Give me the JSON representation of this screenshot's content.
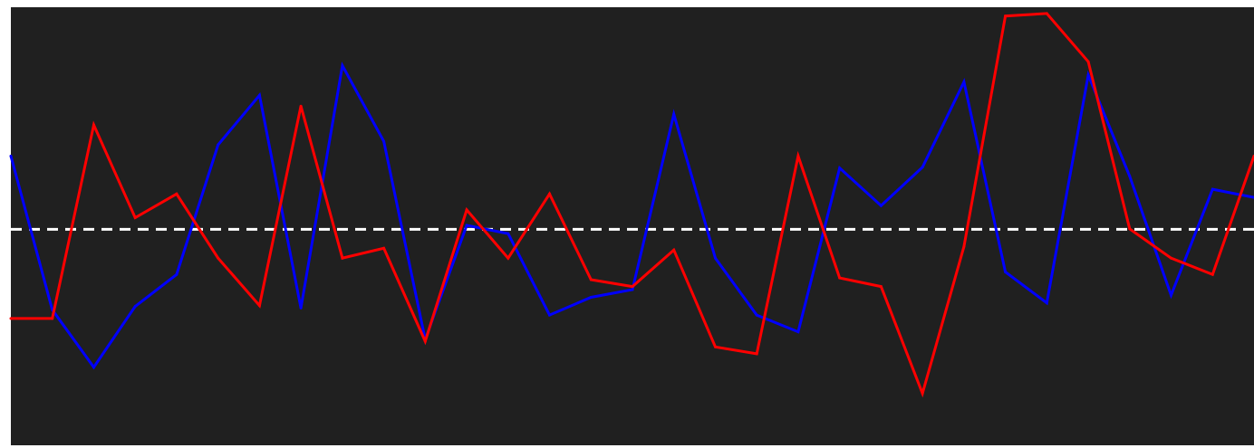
{
  "chart_data": {
    "type": "line",
    "title": "",
    "xlabel": "",
    "ylabel": "",
    "grid": false,
    "legend": "none",
    "background_color": "#202020",
    "ylim": [
      0,
      100
    ],
    "reference_line": {
      "y": 49.3,
      "style": "dashed",
      "color": "#ffffff"
    },
    "x": [
      0,
      1,
      2,
      3,
      4,
      5,
      6,
      7,
      8,
      9,
      10,
      11,
      12,
      13,
      14,
      15,
      16,
      17,
      18,
      19,
      20,
      21,
      22,
      23,
      24,
      25,
      26,
      27,
      28,
      29,
      30
    ],
    "series": [
      {
        "color": "#0000ff",
        "values": [
          66.3,
          30.6,
          17.3,
          31.4,
          38.8,
          68.9,
          80.4,
          31.0,
          87.3,
          69.7,
          23.7,
          50.2,
          48.3,
          29.4,
          33.5,
          35.3,
          76.0,
          42.6,
          29.4,
          25.5,
          63.5,
          54.8,
          63.7,
          83.5,
          39.4,
          32.2,
          85.1,
          61.6,
          34.0,
          58.6,
          56.7
        ]
      },
      {
        "color": "#ff0000",
        "values": [
          28.6,
          28.6,
          73.5,
          52.0,
          57.5,
          42.6,
          31.6,
          77.9,
          42.6,
          44.9,
          23.3,
          53.8,
          42.6,
          57.5,
          37.6,
          36.0,
          44.5,
          22.0,
          20.4,
          66.3,
          38.0,
          36.0,
          11.2,
          45.3,
          98.8,
          99.4,
          88.2,
          49.4,
          42.6,
          38.8,
          66.3
        ]
      }
    ]
  }
}
